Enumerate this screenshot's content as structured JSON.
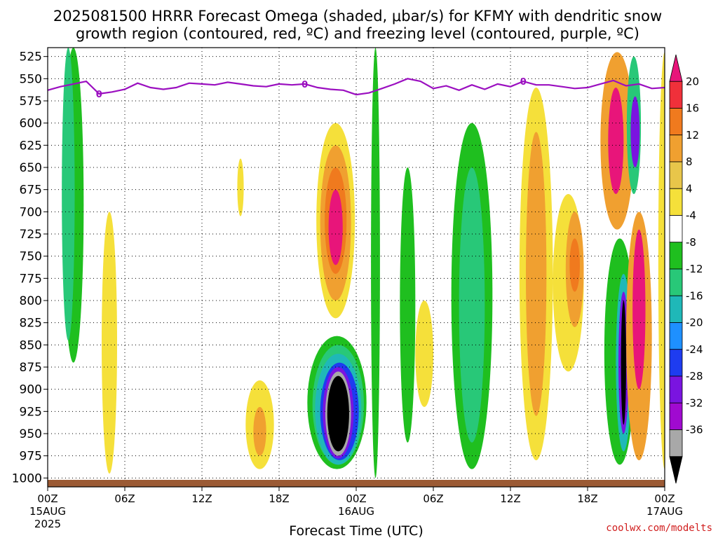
{
  "chart_data": {
    "type": "heatmap",
    "title_line1": "2025081500 HRRR Forecast Omega (shaded, μbar/s) for KFMY with dendritic snow",
    "title_line2": "growth region (contoured, red, ºC) and freezing level (contoured, purple, ºC)",
    "xlabel": "Forecast Time (UTC)",
    "credit": "coolwx.com/modelts",
    "y_axis": {
      "unit": "hPa",
      "range": [
        1010,
        515
      ],
      "ticks": [
        525,
        550,
        575,
        600,
        625,
        650,
        675,
        700,
        725,
        750,
        775,
        800,
        825,
        850,
        875,
        900,
        925,
        950,
        975,
        1000
      ]
    },
    "x_axis": {
      "range_hours": [
        0,
        48
      ],
      "ticks": [
        {
          "h": 0,
          "label": "00Z",
          "sub": "15AUG",
          "sub2": "2025"
        },
        {
          "h": 6,
          "label": "06Z"
        },
        {
          "h": 12,
          "label": "12Z"
        },
        {
          "h": 18,
          "label": "18Z"
        },
        {
          "h": 24,
          "label": "00Z",
          "sub": "16AUG"
        },
        {
          "h": 30,
          "label": "06Z"
        },
        {
          "h": 36,
          "label": "12Z"
        },
        {
          "h": 42,
          "label": "18Z"
        },
        {
          "h": 48,
          "label": "00Z",
          "sub": "17AUG"
        }
      ]
    },
    "colorbar": {
      "levels": [
        20,
        16,
        12,
        8,
        4,
        -4,
        -8,
        -12,
        -16,
        -20,
        -24,
        -28,
        -32,
        -36
      ],
      "colors": [
        "#e8157a",
        "#f0303a",
        "#f07a1e",
        "#f0a030",
        "#e8c64a",
        "#f5e03a",
        "#ffffff",
        "#1fbf1f",
        "#28c878",
        "#1fb8b8",
        "#1e90ff",
        "#1e3cf0",
        "#7a14e0",
        "#a00ad0",
        "#a8a8a8",
        "#000000"
      ]
    },
    "freezing_level": {
      "label": "0",
      "label_hours": [
        4,
        20,
        37
      ],
      "points": [
        [
          0,
          563
        ],
        [
          1,
          559
        ],
        [
          2,
          556
        ],
        [
          3,
          553
        ],
        [
          4,
          567
        ],
        [
          5,
          565
        ],
        [
          6,
          562
        ],
        [
          7,
          555
        ],
        [
          8,
          560
        ],
        [
          9,
          562
        ],
        [
          10,
          560
        ],
        [
          11,
          555
        ],
        [
          12,
          556
        ],
        [
          13,
          557
        ],
        [
          14,
          554
        ],
        [
          15,
          556
        ],
        [
          16,
          558
        ],
        [
          17,
          559
        ],
        [
          18,
          556
        ],
        [
          19,
          557
        ],
        [
          20,
          556
        ],
        [
          21,
          560
        ],
        [
          22,
          562
        ],
        [
          23,
          563
        ],
        [
          24,
          568
        ],
        [
          25,
          566
        ],
        [
          26,
          561
        ],
        [
          27,
          556
        ],
        [
          28,
          550
        ],
        [
          29,
          553
        ],
        [
          30,
          561
        ],
        [
          31,
          558
        ],
        [
          32,
          563
        ],
        [
          33,
          557
        ],
        [
          34,
          562
        ],
        [
          35,
          556
        ],
        [
          36,
          559
        ],
        [
          37,
          553
        ],
        [
          38,
          557
        ],
        [
          39,
          557
        ],
        [
          40,
          559
        ],
        [
          41,
          561
        ],
        [
          42,
          560
        ],
        [
          43,
          556
        ],
        [
          44,
          552
        ],
        [
          45,
          558
        ],
        [
          46,
          556
        ],
        [
          47,
          561
        ],
        [
          48,
          560
        ]
      ]
    },
    "omega_features": [
      {
        "h": 25.5,
        "p0": 515,
        "p1": 1000,
        "w": 0.35,
        "level": -8
      },
      {
        "h": 2.0,
        "p0": 515,
        "p1": 870,
        "w": 0.8,
        "level": -8
      },
      {
        "h": 1.6,
        "p0": 515,
        "p1": 845,
        "w": 0.5,
        "level": -12
      },
      {
        "h": 22.5,
        "p0": 840,
        "p1": 990,
        "w": 2.3,
        "level": -8
      },
      {
        "h": 22.6,
        "p0": 850,
        "p1": 985,
        "w": 2.0,
        "level": -12
      },
      {
        "h": 22.6,
        "p0": 860,
        "p1": 985,
        "w": 1.8,
        "level": -16
      },
      {
        "h": 22.7,
        "p0": 870,
        "p1": 980,
        "w": 1.5,
        "level": -24
      },
      {
        "h": 22.6,
        "p0": 875,
        "p1": 978,
        "w": 1.2,
        "level": -28
      },
      {
        "h": 22.6,
        "p0": 880,
        "p1": 975,
        "w": 1.0,
        "level": -32
      },
      {
        "h": 22.6,
        "p0": 885,
        "p1": 970,
        "w": 0.85,
        "level": -36
      },
      {
        "h": 22.4,
        "p0": 600,
        "p1": 820,
        "w": 1.5,
        "level": 4
      },
      {
        "h": 22.4,
        "p0": 625,
        "p1": 800,
        "w": 1.2,
        "level": 8
      },
      {
        "h": 22.4,
        "p0": 650,
        "p1": 770,
        "w": 0.85,
        "level": 12
      },
      {
        "h": 22.4,
        "p0": 675,
        "p1": 760,
        "w": 0.55,
        "level": 20
      },
      {
        "h": 28.0,
        "p0": 650,
        "p1": 960,
        "w": 0.6,
        "level": -8
      },
      {
        "h": 33.0,
        "p0": 600,
        "p1": 990,
        "w": 1.6,
        "level": -8
      },
      {
        "h": 33.0,
        "p0": 650,
        "p1": 960,
        "w": 1.0,
        "level": -12
      },
      {
        "h": 38.0,
        "p0": 560,
        "p1": 980,
        "w": 1.3,
        "level": 4
      },
      {
        "h": 38.0,
        "p0": 610,
        "p1": 930,
        "w": 0.8,
        "level": 8
      },
      {
        "h": 40.5,
        "p0": 680,
        "p1": 880,
        "w": 1.2,
        "level": 4
      },
      {
        "h": 41.0,
        "p0": 700,
        "p1": 830,
        "w": 0.7,
        "level": 8
      },
      {
        "h": 41.0,
        "p0": 730,
        "p1": 790,
        "w": 0.4,
        "level": 12
      },
      {
        "h": 44.5,
        "p0": 730,
        "p1": 985,
        "w": 1.2,
        "level": -8
      },
      {
        "h": 44.8,
        "p0": 770,
        "p1": 970,
        "w": 0.6,
        "level": -16
      },
      {
        "h": 44.8,
        "p0": 790,
        "p1": 950,
        "w": 0.4,
        "level": -28
      },
      {
        "h": 44.8,
        "p0": 800,
        "p1": 940,
        "w": 0.2,
        "level": -36
      },
      {
        "h": 44.3,
        "p0": 520,
        "p1": 720,
        "w": 1.3,
        "level": 8
      },
      {
        "h": 44.2,
        "p0": 560,
        "p1": 680,
        "w": 0.6,
        "level": 20
      },
      {
        "h": 45.6,
        "p0": 525,
        "p1": 680,
        "w": 0.55,
        "level": -12
      },
      {
        "h": 45.7,
        "p0": 570,
        "p1": 650,
        "w": 0.35,
        "level": -28
      },
      {
        "h": 46.0,
        "p0": 700,
        "p1": 980,
        "w": 1.0,
        "level": 8
      },
      {
        "h": 46.0,
        "p0": 720,
        "p1": 900,
        "w": 0.5,
        "level": 20
      },
      {
        "h": 16.5,
        "p0": 890,
        "p1": 990,
        "w": 1.1,
        "level": 4
      },
      {
        "h": 16.5,
        "p0": 920,
        "p1": 975,
        "w": 0.5,
        "level": 8
      },
      {
        "h": 29.3,
        "p0": 800,
        "p1": 920,
        "w": 0.7,
        "level": 4
      },
      {
        "h": 4.8,
        "p0": 700,
        "p1": 995,
        "w": 0.6,
        "level": 4
      },
      {
        "h": 15.0,
        "p0": 640,
        "p1": 705,
        "w": 0.25,
        "level": 4
      },
      {
        "h": 48.0,
        "p0": 520,
        "p1": 990,
        "w": 0.5,
        "level": 4
      }
    ]
  }
}
